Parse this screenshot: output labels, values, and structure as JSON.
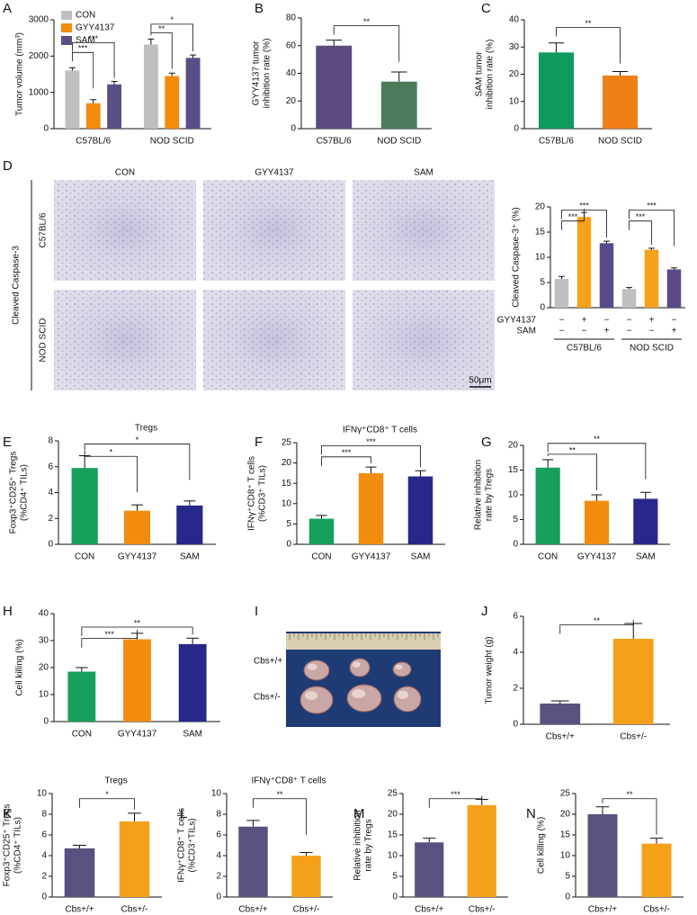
{
  "chart_data": [
    {
      "type": "bar",
      "panel": "A",
      "ylabel": [
        "Tumor volume (mm³)"
      ],
      "categories": [
        "C57BL/6",
        "NOD SCID"
      ],
      "series": [
        {
          "name": "CON",
          "color": "#bfbfbf",
          "values": [
            1600,
            2320
          ],
          "errors": [
            80,
            150
          ]
        },
        {
          "name": "GYY4137",
          "color": "#f28c0f",
          "values": [
            700,
            1450
          ],
          "errors": [
            100,
            80
          ]
        },
        {
          "name": "SAM",
          "color": "#5b4e86",
          "values": [
            1220,
            1950
          ],
          "errors": [
            80,
            80
          ]
        }
      ],
      "ylim": [
        0,
        3000
      ],
      "yticks": [
        0,
        1000,
        2000,
        3000
      ],
      "annotations": [
        "***",
        "***",
        "**",
        "*"
      ]
    },
    {
      "type": "bar",
      "panel": "B",
      "ylabel": [
        "GYY4137 tumor",
        "inhibition rate (%)"
      ],
      "categories": [
        "C57BL/6",
        "NOD SCID"
      ],
      "values": [
        60,
        34
      ],
      "errors": [
        4,
        7
      ],
      "colors": [
        "#5b4b7f",
        "#4a7c5c"
      ],
      "ylim": [
        0,
        80
      ],
      "yticks": [
        0,
        20,
        40,
        60,
        80
      ],
      "annotations": [
        "**"
      ]
    },
    {
      "type": "bar",
      "panel": "C",
      "ylabel": [
        "SAM tumor",
        "inhibition rate (%)"
      ],
      "categories": [
        "C57BL/6",
        "NOD SCID"
      ],
      "values": [
        28,
        19.5
      ],
      "errors": [
        3.5,
        1.5
      ],
      "colors": [
        "#0e9a5a",
        "#ef7f16"
      ],
      "ylim": [
        0,
        40
      ],
      "yticks": [
        0,
        10,
        20,
        30,
        40
      ],
      "annotations": [
        "**"
      ]
    },
    {
      "type": "bar",
      "panel": "D",
      "ylabel": [
        "Cleaved Caspase-3⁺ (%)"
      ],
      "groups": [
        "C57BL/6",
        "NOD SCID"
      ],
      "values": [
        5.7,
        18,
        12.8,
        3.7,
        11.5,
        7.6
      ],
      "errors": [
        0.5,
        0.9,
        0.4,
        0.3,
        0.3,
        0.3
      ],
      "colors": [
        "#bfbfbf",
        "#f5a11a",
        "#5a4a8a",
        "#bfbfbf",
        "#f5a11a",
        "#5a4a8a"
      ],
      "condition_table": [
        {
          "name": "GYY4137",
          "marks": [
            "−",
            "+",
            "−",
            "−",
            "+",
            "−"
          ]
        },
        {
          "name": "SAM",
          "marks": [
            "−",
            "−",
            "+",
            "−",
            "−",
            "+"
          ]
        }
      ],
      "ylim": [
        0,
        20
      ],
      "yticks": [
        0,
        5,
        10,
        15,
        20
      ],
      "annotations": [
        "***",
        "***",
        "***",
        "***"
      ],
      "image_grid": {
        "columns": [
          "CON",
          "GYY4137",
          "SAM"
        ],
        "rows": [
          "C57BL/6",
          "NOD SCID"
        ],
        "side_label": "Cleaved Caspase-3",
        "scale_bar": "50μm"
      }
    },
    {
      "type": "bar",
      "panel": "E",
      "title": "Tregs",
      "ylabel": [
        "Foxp3⁺CD25⁺ Tregs",
        "(%CD4⁺ TILs)"
      ],
      "categories": [
        "CON",
        "GYY4137",
        "SAM"
      ],
      "values": [
        5.9,
        2.6,
        3.0
      ],
      "errors": [
        0.95,
        0.45,
        0.35
      ],
      "colors": [
        "#16a05c",
        "#f28c0f",
        "#28288a"
      ],
      "ylim": [
        0,
        8
      ],
      "yticks": [
        0,
        2,
        4,
        6,
        8
      ],
      "annotations": [
        "*",
        "*"
      ]
    },
    {
      "type": "bar",
      "panel": "F",
      "title": "IFNγ⁺CD8⁺ T cells",
      "ylabel": [
        "IFNγ⁺CD8⁺ T cells",
        "(%CD3⁺ TILs)"
      ],
      "categories": [
        "CON",
        "GYY4137",
        "SAM"
      ],
      "values": [
        6.3,
        17.5,
        16.7
      ],
      "errors": [
        0.8,
        1.5,
        1.4
      ],
      "colors": [
        "#16a05c",
        "#f28c0f",
        "#28288a"
      ],
      "ylim": [
        0,
        25
      ],
      "yticks": [
        0,
        5,
        10,
        15,
        20,
        25
      ],
      "annotations": [
        "***",
        "***"
      ]
    },
    {
      "type": "bar",
      "panel": "G",
      "ylabel": [
        "Relative inhibition",
        "rate by Tregs"
      ],
      "categories": [
        "CON",
        "GYY4137",
        "SAM"
      ],
      "values": [
        15.5,
        8.8,
        9.2
      ],
      "errors": [
        1.6,
        1.2,
        1.3
      ],
      "colors": [
        "#16a05c",
        "#f28c0f",
        "#28288a"
      ],
      "ylim": [
        0,
        20
      ],
      "yticks": [
        0,
        5,
        10,
        15,
        20
      ],
      "annotations": [
        "**",
        "**"
      ]
    },
    {
      "type": "bar",
      "panel": "H",
      "ylabel": [
        "Cell killing (%)"
      ],
      "categories": [
        "CON",
        "GYY4137",
        "SAM"
      ],
      "values": [
        18.5,
        30.5,
        28.7
      ],
      "errors": [
        1.5,
        2.2,
        2.2
      ],
      "colors": [
        "#16a05c",
        "#f28c0f",
        "#28288a"
      ],
      "ylim": [
        0,
        40
      ],
      "yticks": [
        0,
        10,
        20,
        30,
        40
      ],
      "annotations": [
        "***",
        "**"
      ]
    },
    {
      "type": "photo",
      "panel": "I",
      "row_labels": [
        "Cbs+/+",
        "Cbs+/-"
      ]
    },
    {
      "type": "bar",
      "panel": "J",
      "ylabel": [
        "Tumor weight (g)"
      ],
      "categories": [
        "Cbs+/+",
        "Cbs+/-"
      ],
      "values": [
        1.15,
        4.75
      ],
      "errors": [
        0.15,
        0.85
      ],
      "colors": [
        "#5b5180",
        "#f5a01a"
      ],
      "ylim": [
        0,
        6
      ],
      "yticks": [
        0,
        2,
        4,
        6
      ],
      "annotations": [
        "**"
      ]
    },
    {
      "type": "bar",
      "panel": "K",
      "title": "Tregs",
      "ylabel": [
        "Foxp3⁺CD25⁺ Tregs",
        "(%CD4⁺ TILs)"
      ],
      "categories": [
        "Cbs+/+",
        "Cbs+/-"
      ],
      "values": [
        4.7,
        7.3
      ],
      "errors": [
        0.3,
        0.8
      ],
      "colors": [
        "#5b5180",
        "#f5a01a"
      ],
      "ylim": [
        0,
        10
      ],
      "yticks": [
        0,
        2,
        4,
        6,
        8,
        10
      ],
      "annotations": [
        "*"
      ]
    },
    {
      "type": "bar",
      "panel": "L",
      "title": "IFNγ⁺CD8⁺ T cells",
      "ylabel": [
        "IFNγ⁺CD8⁺ T cells",
        "(%CD3⁺TILs)"
      ],
      "categories": [
        "Cbs+/+",
        "Cbs+/-"
      ],
      "values": [
        6.8,
        4.0
      ],
      "errors": [
        0.6,
        0.3
      ],
      "colors": [
        "#5b5180",
        "#f5a01a"
      ],
      "ylim": [
        0,
        10
      ],
      "yticks": [
        0,
        2,
        4,
        6,
        8,
        10
      ],
      "annotations": [
        "**"
      ]
    },
    {
      "type": "bar",
      "panel": "M",
      "ylabel": [
        "Relative inhibition",
        "rate by Tregs"
      ],
      "categories": [
        "Cbs+/+",
        "Cbs+/-"
      ],
      "values": [
        13.2,
        22.2
      ],
      "errors": [
        1.0,
        1.4
      ],
      "colors": [
        "#5b5180",
        "#f5a01a"
      ],
      "ylim": [
        0,
        25
      ],
      "yticks": [
        0,
        5,
        10,
        15,
        20,
        25
      ],
      "annotations": [
        "***"
      ]
    },
    {
      "type": "bar",
      "panel": "N",
      "ylabel": [
        "Cell killing (%)"
      ],
      "categories": [
        "Cbs+/+",
        "Cbs+/-"
      ],
      "values": [
        20,
        12.9
      ],
      "errors": [
        1.8,
        1.3
      ],
      "colors": [
        "#5b5180",
        "#f5a01a"
      ],
      "ylim": [
        0,
        25
      ],
      "yticks": [
        0,
        5,
        10,
        15,
        20,
        25
      ],
      "annotations": [
        "**"
      ]
    }
  ]
}
